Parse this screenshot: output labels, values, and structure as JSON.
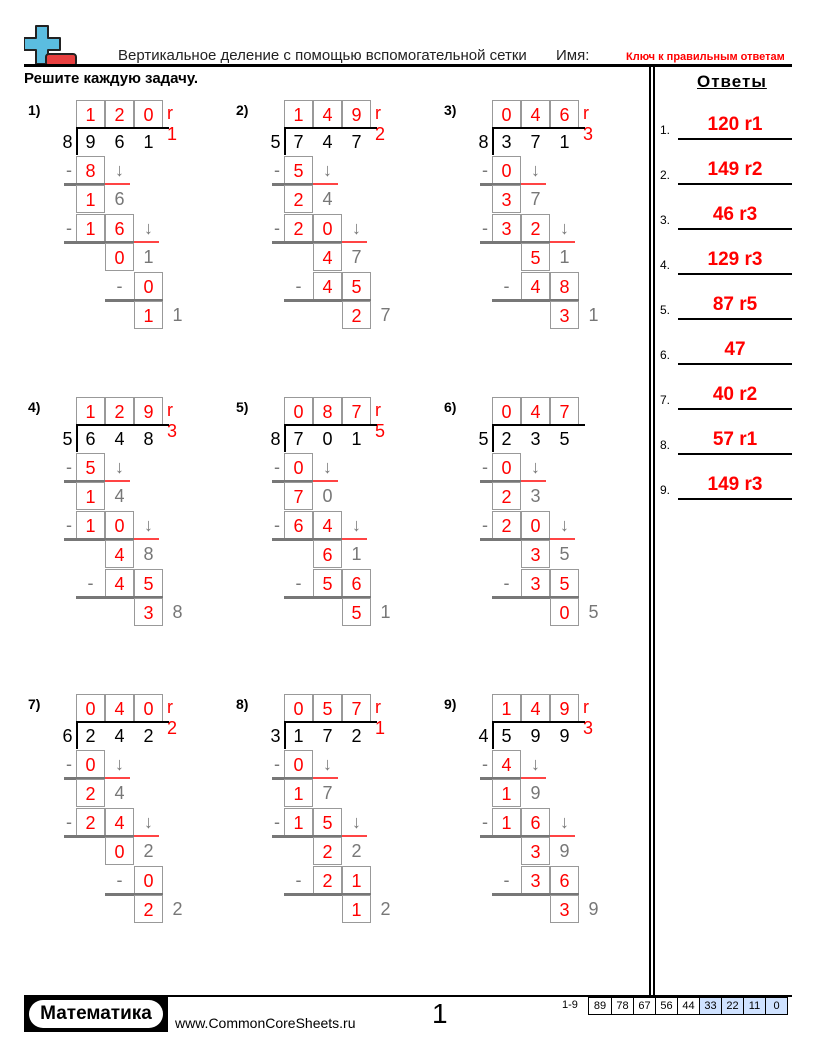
{
  "header": {
    "title": "Вертикальное деление с помощью вспомогательной сетки",
    "name_label": "Имя:",
    "key_label": "Ключ к правильным ответам",
    "instructions": "Решите каждую задачу.",
    "logo_icon": "plus-minus-logo-icon"
  },
  "colors": {
    "answer": "#ff0000",
    "box_border": "#999999",
    "helper_digit": "#777777",
    "score_highlight": "#cfe2ff"
  },
  "answers": {
    "title": "Ответы",
    "items": [
      {
        "num": "1.",
        "value": "120 r1"
      },
      {
        "num": "2.",
        "value": "149 r2"
      },
      {
        "num": "3.",
        "value": "46 r3"
      },
      {
        "num": "4.",
        "value": "129 r3"
      },
      {
        "num": "5.",
        "value": "87 r5"
      },
      {
        "num": "6.",
        "value": "47"
      },
      {
        "num": "7.",
        "value": "40 r2"
      },
      {
        "num": "8.",
        "value": "57 r1"
      },
      {
        "num": "9.",
        "value": "149 r3"
      }
    ]
  },
  "problems": [
    {
      "label": "1)",
      "q": [
        "1",
        "2",
        "0"
      ],
      "r": "r 1",
      "divisor": "8",
      "dividend": [
        "9",
        "6",
        "1"
      ],
      "s1": [
        "8"
      ],
      "d1": [
        "1",
        "6"
      ],
      "s2": [
        "1",
        "6"
      ],
      "d2": [
        "0",
        "1"
      ],
      "s3": [
        "0"
      ],
      "d3": [
        "1",
        "1"
      ]
    },
    {
      "label": "2)",
      "q": [
        "1",
        "4",
        "9"
      ],
      "r": "r 2",
      "divisor": "5",
      "dividend": [
        "7",
        "4",
        "7"
      ],
      "s1": [
        "5"
      ],
      "d1": [
        "2",
        "4"
      ],
      "s2": [
        "2",
        "0"
      ],
      "d2": [
        "4",
        "7"
      ],
      "s3": [
        "4",
        "5"
      ],
      "d3": [
        "2",
        "7"
      ]
    },
    {
      "label": "3)",
      "q": [
        "0",
        "4",
        "6"
      ],
      "r": "r 3",
      "divisor": "8",
      "dividend": [
        "3",
        "7",
        "1"
      ],
      "s1": [
        "0"
      ],
      "d1": [
        "3",
        "7"
      ],
      "s2": [
        "3",
        "2"
      ],
      "d2": [
        "5",
        "1"
      ],
      "s3": [
        "4",
        "8"
      ],
      "d3": [
        "3",
        "1"
      ]
    },
    {
      "label": "4)",
      "q": [
        "1",
        "2",
        "9"
      ],
      "r": "r 3",
      "divisor": "5",
      "dividend": [
        "6",
        "4",
        "8"
      ],
      "s1": [
        "5"
      ],
      "d1": [
        "1",
        "4"
      ],
      "s2": [
        "1",
        "0"
      ],
      "d2": [
        "4",
        "8"
      ],
      "s3": [
        "4",
        "5"
      ],
      "d3": [
        "3",
        "8"
      ]
    },
    {
      "label": "5)",
      "q": [
        "0",
        "8",
        "7"
      ],
      "r": "r 5",
      "divisor": "8",
      "dividend": [
        "7",
        "0",
        "1"
      ],
      "s1": [
        "0"
      ],
      "d1": [
        "7",
        "0"
      ],
      "s2": [
        "6",
        "4"
      ],
      "d2": [
        "6",
        "1"
      ],
      "s3": [
        "5",
        "6"
      ],
      "d3": [
        "5",
        "1"
      ]
    },
    {
      "label": "6)",
      "q": [
        "0",
        "4",
        "7"
      ],
      "r": "",
      "divisor": "5",
      "dividend": [
        "2",
        "3",
        "5"
      ],
      "s1": [
        "0"
      ],
      "d1": [
        "2",
        "3"
      ],
      "s2": [
        "2",
        "0"
      ],
      "d2": [
        "3",
        "5"
      ],
      "s3": [
        "3",
        "5"
      ],
      "d3": [
        "0",
        "5"
      ]
    },
    {
      "label": "7)",
      "q": [
        "0",
        "4",
        "0"
      ],
      "r": "r 2",
      "divisor": "6",
      "dividend": [
        "2",
        "4",
        "2"
      ],
      "s1": [
        "0"
      ],
      "d1": [
        "2",
        "4"
      ],
      "s2": [
        "2",
        "4"
      ],
      "d2": [
        "0",
        "2"
      ],
      "s3": [
        "0"
      ],
      "d3": [
        "2",
        "2"
      ]
    },
    {
      "label": "8)",
      "q": [
        "0",
        "5",
        "7"
      ],
      "r": "r 1",
      "divisor": "3",
      "dividend": [
        "1",
        "7",
        "2"
      ],
      "s1": [
        "0"
      ],
      "d1": [
        "1",
        "7"
      ],
      "s2": [
        "1",
        "5"
      ],
      "d2": [
        "2",
        "2"
      ],
      "s3": [
        "2",
        "1"
      ],
      "d3": [
        "1",
        "2"
      ]
    },
    {
      "label": "9)",
      "q": [
        "1",
        "4",
        "9"
      ],
      "r": "r 3",
      "divisor": "4",
      "dividend": [
        "5",
        "9",
        "9"
      ],
      "s1": [
        "4"
      ],
      "d1": [
        "1",
        "9"
      ],
      "s2": [
        "1",
        "6"
      ],
      "d2": [
        "3",
        "9"
      ],
      "s3": [
        "3",
        "6"
      ],
      "d3": [
        "3",
        "9"
      ]
    }
  ],
  "symbols": {
    "minus": "-",
    "arrow": "↓"
  },
  "footer": {
    "logo_text": "Математика",
    "site": "www.CommonCoreSheets.ru",
    "page": "1",
    "range": "1-9",
    "scores": [
      "89",
      "78",
      "67",
      "56",
      "44",
      "33",
      "22",
      "11",
      "0"
    ],
    "highlighted_from": "33"
  }
}
